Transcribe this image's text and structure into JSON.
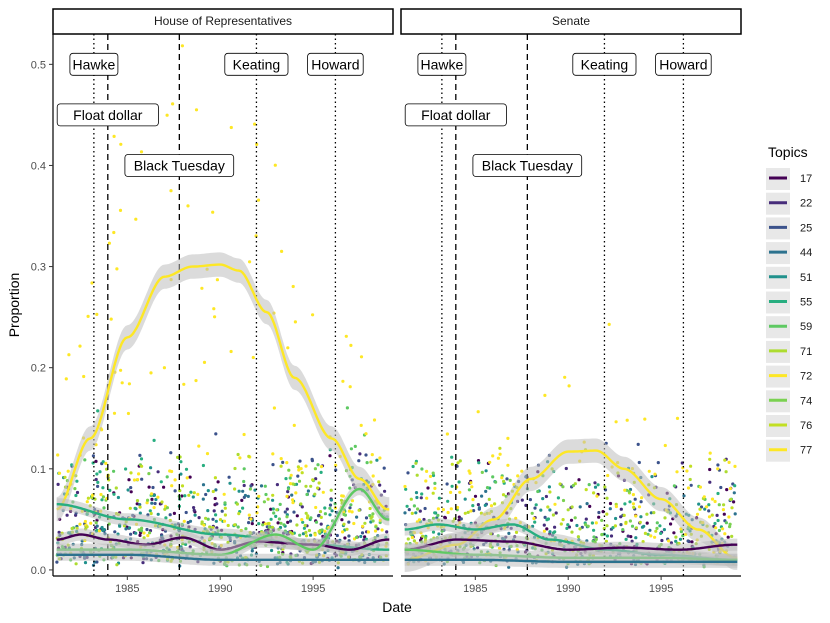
{
  "chart_data": {
    "type": "scatter",
    "xlabel": "Date",
    "ylabel": "Proportion",
    "xlim": [
      1981.0,
      1999.3
    ],
    "ylim": [
      -0.006,
      0.53
    ],
    "x_ticks": [
      1985,
      1990,
      1995
    ],
    "x_tick_labels": [
      "1985",
      "1990",
      "1995"
    ],
    "y_ticks": [
      0.0,
      0.1,
      0.2,
      0.3,
      0.4,
      0.5
    ],
    "y_tick_labels": [
      "0.0",
      "0.1",
      "0.2",
      "0.3",
      "0.4",
      "0.5"
    ],
    "grid": false,
    "legend_position": "right",
    "legend_title": "Topics",
    "topics": [
      {
        "name": "17",
        "color": "#440154"
      },
      {
        "name": "22",
        "color": "#472d7b"
      },
      {
        "name": "25",
        "color": "#3b528b"
      },
      {
        "name": "44",
        "color": "#2c728e"
      },
      {
        "name": "51",
        "color": "#21918c"
      },
      {
        "name": "55",
        "color": "#28ae80"
      },
      {
        "name": "59",
        "color": "#5ec962"
      },
      {
        "name": "71",
        "color": "#addc30"
      },
      {
        "name": "72",
        "color": "#fde725"
      },
      {
        "name": "74",
        "color": "#7ad151"
      },
      {
        "name": "76",
        "color": "#c2df23"
      },
      {
        "name": "77",
        "color": "#fde725"
      }
    ],
    "events": [
      {
        "label": "Hawke",
        "x": 1983.2,
        "linetype": "dotted",
        "label_y": 0.5
      },
      {
        "label": "Float dollar",
        "x": 1983.95,
        "linetype": "dashed",
        "label_y": 0.45
      },
      {
        "label": "Black Tuesday",
        "x": 1987.8,
        "linetype": "dashed",
        "label_y": 0.4
      },
      {
        "label": "Keating",
        "x": 1991.95,
        "linetype": "dotted",
        "label_y": 0.5
      },
      {
        "label": "Howard",
        "x": 1996.2,
        "linetype": "dotted",
        "label_y": 0.5
      }
    ],
    "panels": [
      {
        "title": "House of Representatives",
        "series": [
          {
            "name": "77",
            "x": [
              1981.2,
              1983,
              1985,
              1987,
              1988.5,
              1990,
              1991,
              1992.5,
              1994,
              1996,
              1997.5,
              1999
            ],
            "values": [
              0.06,
              0.13,
              0.23,
              0.29,
              0.3,
              0.302,
              0.296,
              0.255,
              0.19,
              0.13,
              0.09,
              0.06
            ]
          },
          {
            "name": "55",
            "x": [
              1981.2,
              1985,
              1990,
              1995,
              1999
            ],
            "values": [
              0.065,
              0.05,
              0.035,
              0.025,
              0.02
            ]
          },
          {
            "name": "17",
            "x": [
              1981.2,
              1982.5,
              1984,
              1986,
              1988,
              1990,
              1992,
              1995,
              1997,
              1999
            ],
            "values": [
              0.03,
              0.035,
              0.03,
              0.025,
              0.032,
              0.02,
              0.028,
              0.025,
              0.02,
              0.03
            ]
          },
          {
            "name": "59",
            "x": [
              1981.2,
              1985,
              1990,
              1993,
              1995,
              1997.5,
              1999
            ],
            "values": [
              0.02,
              0.02,
              0.015,
              0.035,
              0.02,
              0.08,
              0.05
            ]
          },
          {
            "name": "44",
            "x": [
              1981.2,
              1985,
              1990,
              1995,
              1999
            ],
            "values": [
              0.015,
              0.015,
              0.01,
              0.01,
              0.01
            ]
          }
        ]
      },
      {
        "title": "Senate",
        "series": [
          {
            "name": "77",
            "x": [
              1981.2,
              1984,
              1986,
              1988,
              1990,
              1991.5,
              1993,
              1995,
              1997,
              1999
            ],
            "values": [
              0.01,
              0.025,
              0.05,
              0.09,
              0.117,
              0.118,
              0.1,
              0.07,
              0.04,
              0.012
            ]
          },
          {
            "name": "55",
            "x": [
              1981.2,
              1983,
              1985,
              1987,
              1989,
              1992,
              1995,
              1999
            ],
            "values": [
              0.04,
              0.045,
              0.04,
              0.045,
              0.03,
              0.02,
              0.015,
              0.01
            ]
          },
          {
            "name": "17",
            "x": [
              1981.2,
              1984,
              1987,
              1990,
              1993,
              1996,
              1999
            ],
            "values": [
              0.02,
              0.03,
              0.028,
              0.02,
              0.022,
              0.02,
              0.025
            ]
          },
          {
            "name": "59",
            "x": [
              1981.2,
              1985,
              1990,
              1995,
              1999
            ],
            "values": [
              0.02,
              0.015,
              0.012,
              0.012,
              0.01
            ]
          },
          {
            "name": "44",
            "x": [
              1981.2,
              1985,
              1990,
              1995,
              1999
            ],
            "values": [
              0.01,
              0.01,
              0.008,
              0.008,
              0.008
            ]
          }
        ]
      }
    ]
  }
}
